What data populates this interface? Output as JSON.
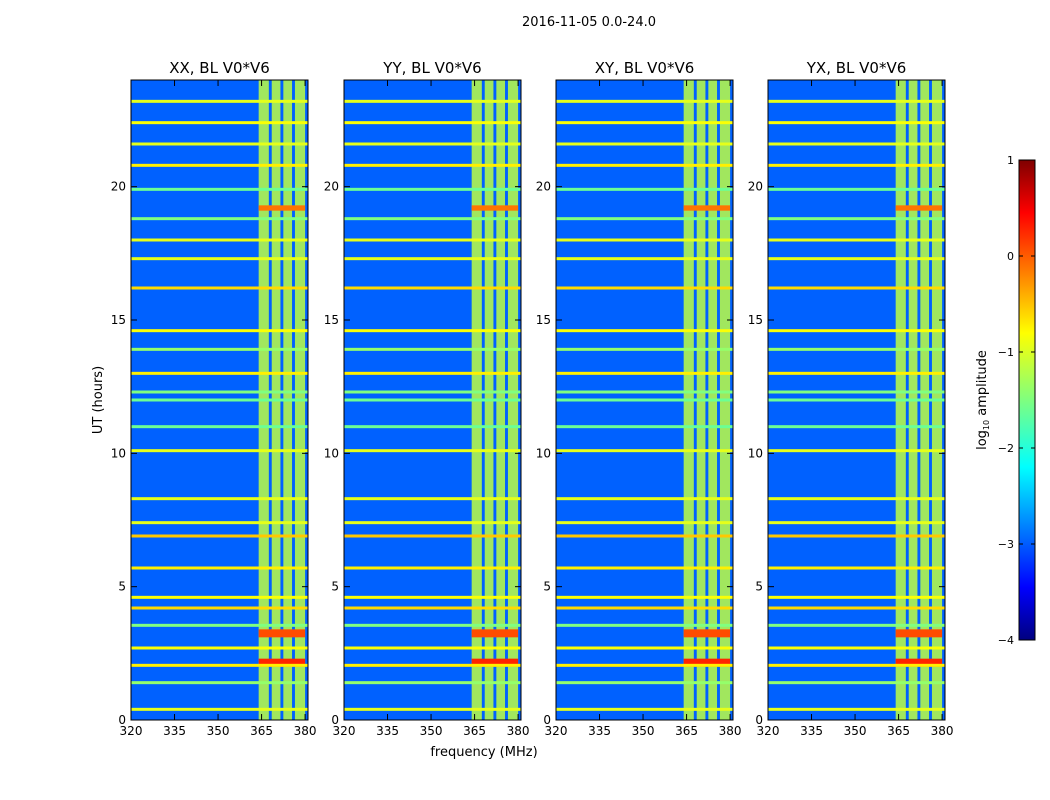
{
  "figure_title": "2016-11-05 0.0-24.0",
  "shared_xlabel": "frequency (MHz)",
  "shared_ylabel": "UT (hours)",
  "chart_data": {
    "type": "heatmap",
    "x_unit": "MHz",
    "y_unit": "hours",
    "xlim": [
      320,
      381
    ],
    "ylim": [
      0,
      24
    ],
    "xticks": [
      320,
      335,
      350,
      365,
      380
    ],
    "yticks": [
      0,
      5,
      10,
      15,
      20
    ],
    "panels": [
      {
        "title": "XX, BL V0*V6"
      },
      {
        "title": "YY, BL V0*V6"
      },
      {
        "title": "XY, BL V0*V6"
      },
      {
        "title": "YX, BL V0*V6"
      }
    ],
    "colorbar": {
      "label_main": "log",
      "label_sub": "10",
      "label_tail": " amplitude",
      "range": [
        -4,
        1
      ],
      "ticks": [
        "1",
        "0",
        "−1",
        "−2",
        "−3",
        "−4"
      ],
      "tick_values": [
        1,
        0,
        -1,
        -2,
        -3,
        -4
      ],
      "colormap": "jet"
    },
    "background_level": -2.9,
    "rfi_band_mhz": [
      364,
      380
    ],
    "rfi_level": -1.2,
    "rfi_strips_mhz": [
      [
        364,
        367.5
      ],
      [
        368.5,
        371.5
      ],
      [
        372.5,
        375.5
      ],
      [
        376.5,
        380
      ]
    ],
    "horizontal_lines_hours": [
      {
        "t": 0.4,
        "level": -1.0
      },
      {
        "t": 1.4,
        "level": -1.4
      },
      {
        "t": 2.05,
        "level": -0.8
      },
      {
        "t": 2.7,
        "level": -0.9
      },
      {
        "t": 3.55,
        "level": -1.5
      },
      {
        "t": 4.2,
        "level": -0.7
      },
      {
        "t": 4.6,
        "level": -0.9
      },
      {
        "t": 5.7,
        "level": -0.8
      },
      {
        "t": 6.9,
        "level": -0.6
      },
      {
        "t": 7.4,
        "level": -1.0
      },
      {
        "t": 8.3,
        "level": -1.0
      },
      {
        "t": 10.1,
        "level": -1.0
      },
      {
        "t": 11.0,
        "level": -1.6
      },
      {
        "t": 12.0,
        "level": -1.6
      },
      {
        "t": 12.3,
        "level": -1.5
      },
      {
        "t": 13.0,
        "level": -0.8
      },
      {
        "t": 13.9,
        "level": -1.4
      },
      {
        "t": 14.6,
        "level": -0.9
      },
      {
        "t": 16.2,
        "level": -0.7
      },
      {
        "t": 17.3,
        "level": -1.0
      },
      {
        "t": 18.0,
        "level": -1.0
      },
      {
        "t": 18.8,
        "level": -1.5
      },
      {
        "t": 19.9,
        "level": -1.6
      },
      {
        "t": 20.8,
        "level": -0.8
      },
      {
        "t": 21.6,
        "level": -1.0
      },
      {
        "t": 22.4,
        "level": -0.9
      },
      {
        "t": 23.2,
        "level": -1.0
      }
    ],
    "hot_spots": [
      {
        "t0": 2.0,
        "t1": 2.3,
        "level": 0.2
      },
      {
        "t0": 3.1,
        "t1": 3.4,
        "level": 0.0
      },
      {
        "t0": 19.1,
        "t1": 19.3,
        "level": -0.2
      }
    ]
  }
}
